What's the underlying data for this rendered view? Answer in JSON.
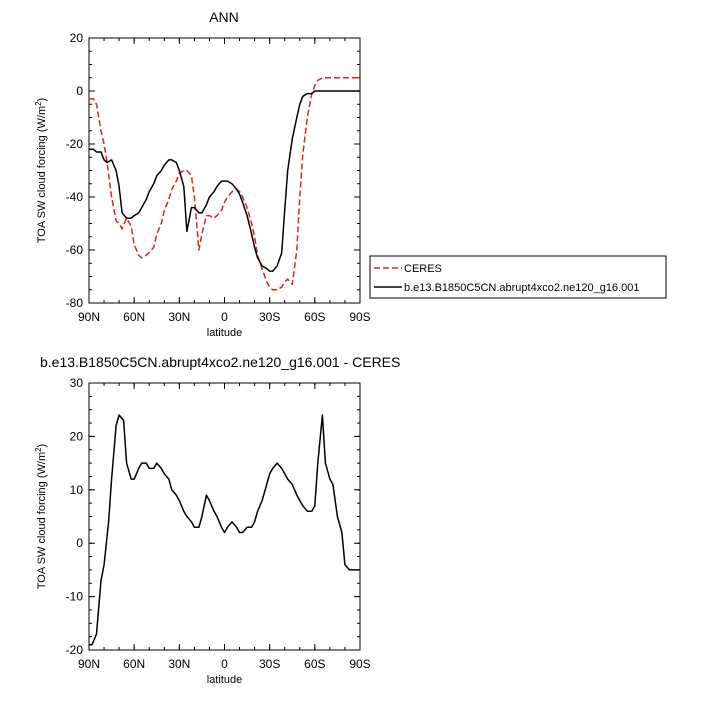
{
  "chart_data": [
    {
      "type": "line",
      "title": "ANN",
      "xlabel": "latitude",
      "ylabel": "TOA SW cloud forcing (W/m",
      "ylabel_sup": "2",
      "ylabel_tail": ")",
      "xlim": [
        90,
        -90
      ],
      "ylim": [
        -80,
        20
      ],
      "xticks": [
        {
          "value": 90,
          "label": "90N"
        },
        {
          "value": 60,
          "label": "60N"
        },
        {
          "value": 30,
          "label": "30N"
        },
        {
          "value": 0,
          "label": "0"
        },
        {
          "value": -30,
          "label": "30S"
        },
        {
          "value": -60,
          "label": "60S"
        },
        {
          "value": -90,
          "label": "90S"
        }
      ],
      "yticks": [
        20,
        0,
        -20,
        -40,
        -60,
        -80
      ],
      "legend": {
        "placement": "right",
        "entries": [
          {
            "name": "CERES",
            "color": "#dd2222",
            "dash": "dashed"
          },
          {
            "name": "b.e13.B1850C5CN.abrupt4xco2.ne120_g16.001",
            "color": "#000000",
            "dash": "solid"
          }
        ]
      },
      "series": [
        {
          "name": "CERES",
          "color": "#dd2222",
          "dash": "dashed",
          "x": [
            90,
            87,
            85,
            82,
            80,
            78,
            75,
            72,
            70,
            68,
            65,
            62,
            60,
            57,
            55,
            52,
            50,
            47,
            45,
            42,
            40,
            37,
            35,
            32,
            30,
            27,
            25,
            22,
            20,
            17,
            15,
            12,
            10,
            7,
            5,
            2,
            0,
            -2,
            -5,
            -8,
            -10,
            -12,
            -15,
            -18,
            -20,
            -22,
            -25,
            -28,
            -30,
            -32,
            -35,
            -38,
            -40,
            -42,
            -45,
            -48,
            -50,
            -52,
            -55,
            -58,
            -60,
            -62,
            -65,
            -68,
            -70,
            -72,
            -75,
            -78,
            -80,
            -82,
            -85,
            -88,
            -90
          ],
          "y": [
            -3,
            -3,
            -5,
            -15,
            -20,
            -27,
            -40,
            -49,
            -50,
            -52,
            -48,
            -51,
            -58,
            -62,
            -63,
            -62,
            -61,
            -59,
            -54,
            -50,
            -45,
            -41,
            -37,
            -34,
            -31,
            -30,
            -30,
            -32,
            -40,
            -60,
            -54,
            -47,
            -47,
            -48,
            -47,
            -45,
            -42,
            -40,
            -38,
            -37,
            -38,
            -40,
            -44,
            -50,
            -55,
            -62,
            -67,
            -72,
            -74,
            -75,
            -75,
            -74,
            -72,
            -71,
            -73,
            -60,
            -40,
            -24,
            -10,
            -1,
            2,
            4,
            5,
            5,
            5,
            5,
            5,
            5,
            5,
            5,
            5,
            5,
            5
          ]
        },
        {
          "name": "b.e13.B1850C5CN.abrupt4xco2.ne120_g16.001",
          "color": "#000000",
          "dash": "solid",
          "x": [
            90,
            87,
            85,
            82,
            80,
            78,
            75,
            72,
            70,
            68,
            65,
            62,
            60,
            57,
            55,
            52,
            50,
            47,
            45,
            42,
            40,
            37,
            35,
            32,
            30,
            27,
            25,
            22,
            20,
            17,
            15,
            12,
            10,
            7,
            5,
            2,
            0,
            -2,
            -5,
            -8,
            -10,
            -12,
            -15,
            -18,
            -20,
            -22,
            -25,
            -28,
            -30,
            -32,
            -35,
            -38,
            -40,
            -42,
            -45,
            -48,
            -50,
            -52,
            -55,
            -58,
            -60,
            -62,
            -65,
            -68,
            -70,
            -72,
            -75,
            -78,
            -80,
            -82,
            -85,
            -88,
            -90
          ],
          "y": [
            -22,
            -22,
            -23,
            -23,
            -26,
            -27,
            -26,
            -30,
            -36,
            -46,
            -48,
            -48,
            -47,
            -46,
            -44,
            -41,
            -38,
            -35,
            -32,
            -30,
            -28,
            -26,
            -26,
            -27,
            -30,
            -36,
            -53,
            -44,
            -44,
            -46,
            -46,
            -43,
            -40,
            -38,
            -36,
            -34,
            -34,
            -34,
            -35,
            -37,
            -39,
            -42,
            -47,
            -54,
            -59,
            -63,
            -66,
            -67,
            -68,
            -68,
            -66,
            -61,
            -45,
            -30,
            -18,
            -10,
            -5,
            -2,
            -1,
            -1,
            0,
            0,
            0,
            0,
            0,
            0,
            0,
            0,
            0,
            0,
            0,
            0,
            0
          ]
        }
      ]
    },
    {
      "type": "line",
      "title": "b.e13.B1850C5CN.abrupt4xco2.ne120_g16.001 - CERES",
      "xlabel": "latitude",
      "ylabel": "TOA SW cloud forcing (W/m",
      "ylabel_sup": "2",
      "ylabel_tail": ")",
      "xlim": [
        90,
        -90
      ],
      "ylim": [
        -20,
        30
      ],
      "xticks": [
        {
          "value": 90,
          "label": "90N"
        },
        {
          "value": 60,
          "label": "60N"
        },
        {
          "value": 30,
          "label": "30N"
        },
        {
          "value": 0,
          "label": "0"
        },
        {
          "value": -30,
          "label": "30S"
        },
        {
          "value": -60,
          "label": "60S"
        },
        {
          "value": -90,
          "label": "90S"
        }
      ],
      "yticks": [
        30,
        20,
        10,
        0,
        -10,
        -20
      ],
      "series": [
        {
          "name": "",
          "color": "#000000",
          "dash": "solid",
          "x": [
            90,
            88,
            85,
            82,
            80,
            77,
            75,
            72,
            70,
            67,
            65,
            62,
            60,
            57,
            55,
            52,
            50,
            47,
            45,
            42,
            40,
            37,
            35,
            32,
            30,
            27,
            25,
            22,
            20,
            17,
            15,
            12,
            10,
            7,
            5,
            2,
            0,
            -2,
            -5,
            -8,
            -10,
            -12,
            -15,
            -18,
            -20,
            -22,
            -25,
            -28,
            -30,
            -32,
            -35,
            -38,
            -40,
            -42,
            -45,
            -48,
            -50,
            -52,
            -55,
            -58,
            -60,
            -62,
            -65,
            -67,
            -70,
            -72,
            -75,
            -78,
            -80,
            -83,
            -85,
            -87,
            -90
          ],
          "y": [
            -19,
            -19,
            -17,
            -7,
            -4,
            4,
            12,
            22,
            24,
            23,
            15,
            12,
            12,
            14,
            15,
            15,
            14,
            14,
            15,
            14,
            13,
            12,
            10,
            9,
            8,
            6,
            5,
            4,
            3,
            3,
            5,
            9,
            8,
            6,
            5,
            3,
            2,
            3,
            4,
            3,
            2,
            2,
            3,
            3,
            4,
            6,
            8,
            11,
            13,
            14,
            15,
            14,
            13,
            12,
            11,
            9,
            8,
            7,
            6,
            6,
            7,
            15,
            24,
            15,
            12,
            11,
            5,
            2,
            -4,
            -5,
            -5,
            -5,
            -5
          ]
        }
      ]
    }
  ]
}
